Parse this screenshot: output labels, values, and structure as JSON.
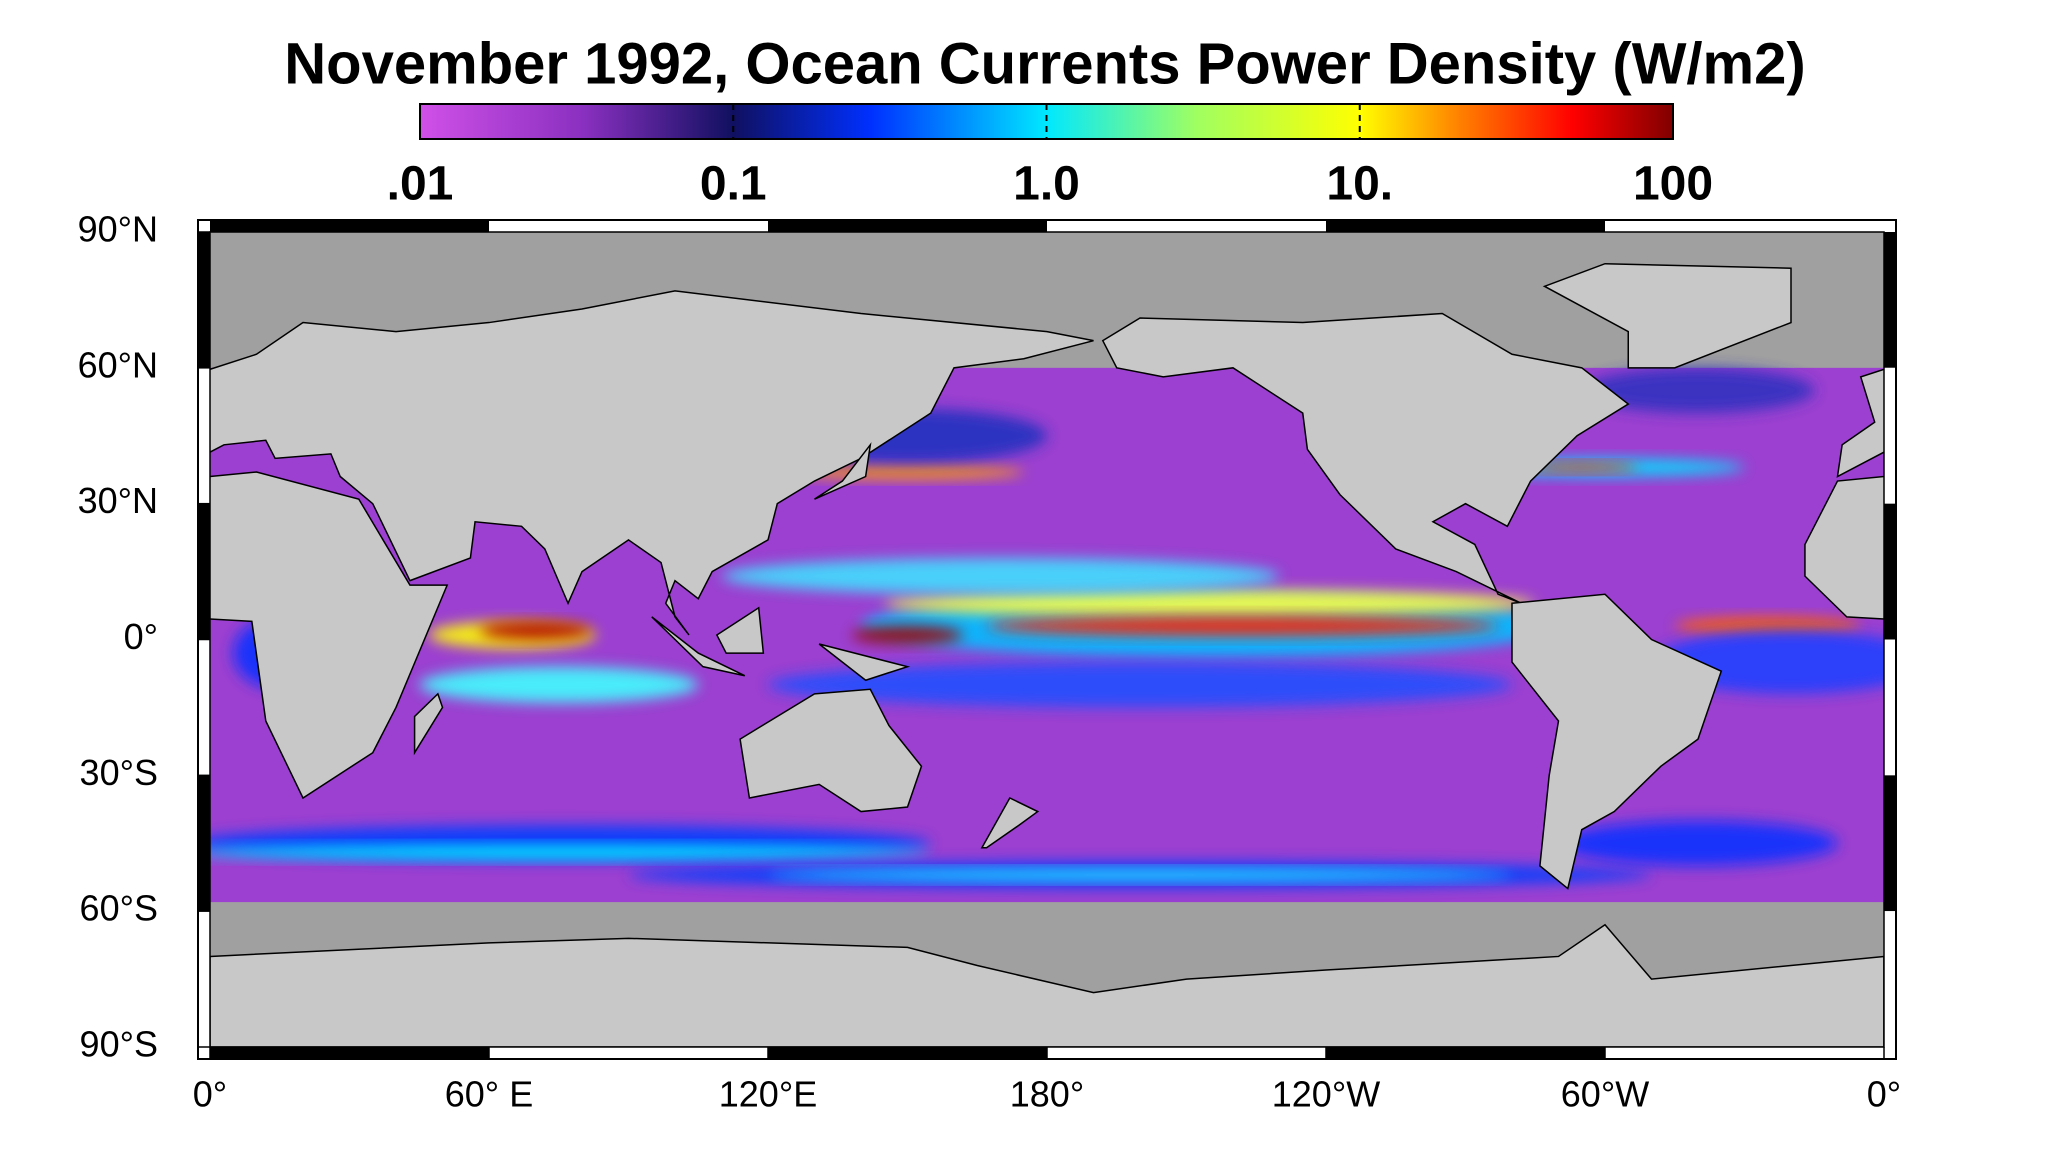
{
  "title": "November 1992, Ocean Currents Power Density  (W/m2)",
  "colorbar": {
    "lim": [
      0.01,
      100
    ],
    "log": true,
    "ticks": [
      {
        "value": 0.01,
        "label": ".01"
      },
      {
        "value": 0.1,
        "label": "0.1"
      },
      {
        "value": 1,
        "label": "1.0"
      },
      {
        "value": 10,
        "label": "10."
      },
      {
        "value": 100,
        "label": "100"
      }
    ]
  },
  "map": {
    "latlim": [
      -90,
      90
    ],
    "lonlim": [
      0,
      360
    ],
    "lat_ticks": [
      {
        "value": 90,
        "label": "90°N"
      },
      {
        "value": 60,
        "label": "60°N"
      },
      {
        "value": 30,
        "label": "30°N"
      },
      {
        "value": 0,
        "label": "0°"
      },
      {
        "value": -30,
        "label": "30°S"
      },
      {
        "value": -60,
        "label": "60°S"
      },
      {
        "value": -90,
        "label": "90°S"
      }
    ],
    "lon_ticks": [
      {
        "value": 0,
        "label": "0°"
      },
      {
        "value": 60,
        "label": "60° E"
      },
      {
        "value": 120,
        "label": "120°E"
      },
      {
        "value": 180,
        "label": "180°"
      },
      {
        "value": 240,
        "label": "120°W"
      },
      {
        "value": 300,
        "label": "60°W"
      },
      {
        "value": 360,
        "label": "0°"
      }
    ]
  }
}
